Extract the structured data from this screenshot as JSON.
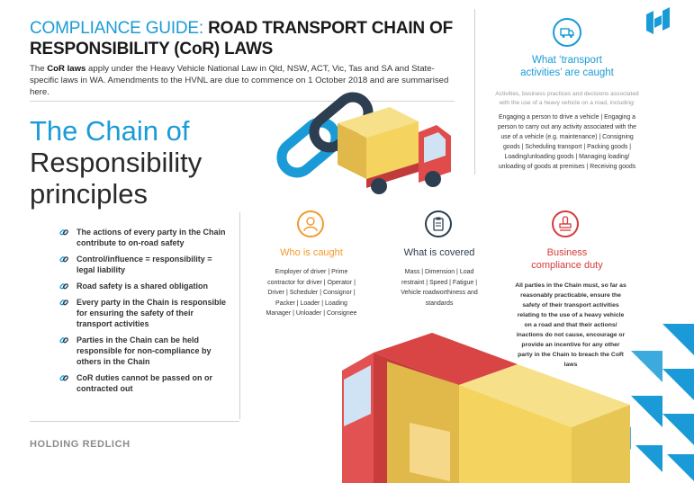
{
  "header": {
    "title_highlight": "COMPLIANCE GUIDE:",
    "title_rest": "ROAD TRANSPORT CHAIN OF RESPONSIBILITY (CoR) LAWS",
    "intro_prefix": "The ",
    "intro_bold": "CoR laws",
    "intro_rest": " apply under the Heavy Vehicle National Law in Qld, NSW, ACT, Vic, Tas and SA and State-specific laws in WA. Amendments to the HVNL are due to commence on 1 October 2018 and are summarised here."
  },
  "chain": {
    "title_line1": "The Chain of",
    "title_line2": "Responsibility",
    "title_line3": "principles",
    "principles": [
      "The actions of every party in the Chain contribute to on-road safety",
      "Control/influence = responsibility = legal liability",
      "Road safety is a shared obligation",
      "Every party in the Chain is responsible for ensuring the safety of their transport activities",
      "Parties in the Chain can be held responsible for non-compliance by others in the Chain",
      "CoR duties cannot be passed on or contracted out"
    ]
  },
  "activities": {
    "heading": "What ‘transport activities’ are caught",
    "subtitle": "Activities, business practices and decisions associated with the use of a heavy vehicle on a road, including:",
    "body": "Engaging a person to drive a vehicle | Engaging a person to carry out any activity associated with the use of a vehicle (e.g. maintenance) | Consigning goods | Scheduling transport | Packing goods | Loading/unloading goods | Managing loading/ unloading of goods at premises | Receiving goods"
  },
  "who": {
    "heading": "Who is caught",
    "body": "Employer of driver | Prime contractor for driver | Operator | Driver | Scheduler | Consignor | Packer | Loader | Loading Manager | Unloader | Consignee"
  },
  "what": {
    "heading": "What is covered",
    "body": "Mass | Dimension | Load restraint | Speed | Fatigue | Vehicle roadworthiness and standards"
  },
  "duty": {
    "heading": "Business compliance duty",
    "body": "All parties in the Chain must, so far as reasonably practicable, ensure the safety of their transport activities relating to the use of a heavy vehicle on a road and that their actions/ inactions do not cause, encourage or provide an incentive for any other party in the Chain to breach the CoR laws"
  },
  "footer": {
    "brand": "HOLDING REDLICH"
  },
  "icons": {
    "logo": "holding-redlich-logo-icon",
    "truck": "truck-icon",
    "person": "person-icon",
    "clipboard": "clipboard-icon",
    "stamp": "stamp-icon",
    "link": "chain-link-icon"
  },
  "colors": {
    "brand_blue": "#1a9bd7",
    "accent_orange": "#f29a2e",
    "accent_red": "#d63b3b",
    "dark_navy": "#2d3e50",
    "truck_yellow": "#f4d35e",
    "truck_red": "#e04b4b"
  }
}
